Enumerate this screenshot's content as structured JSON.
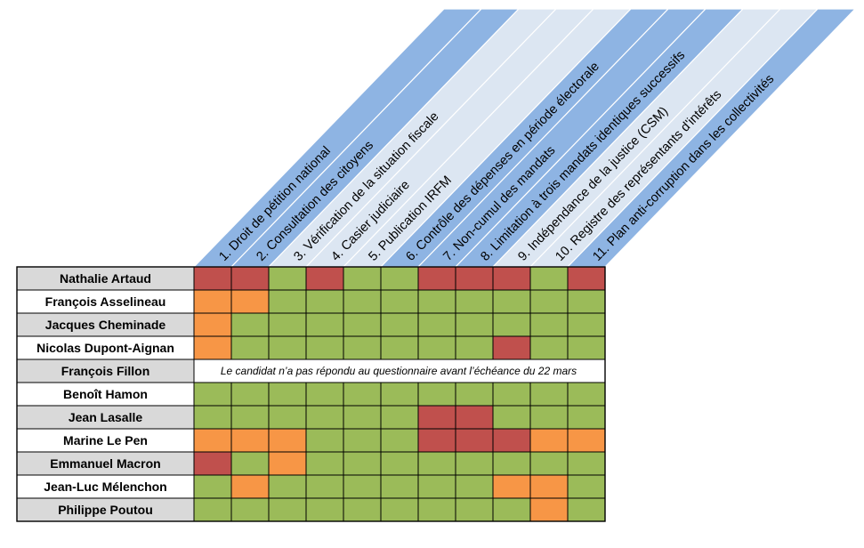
{
  "chart_data": {
    "type": "table",
    "title": "",
    "criteria": [
      "1. Droit de pétition national",
      "2. Consultation des citoyens",
      "3. Vérification de la situation fiscale",
      "4. Casier judiciaire",
      "5. Publication IRFM",
      "6. Contrôle des dépenses en période électorale",
      "7. Non-cumul des mandats",
      "8. Limitation à trois mandats identiques successifs",
      "9. Indépendance de la justice (CSM)",
      "10. Registre des représentants d'intérêts",
      "11. Plan anti-corruption dans les collectivités"
    ],
    "header_colors": [
      "#8eb4e3",
      "#8eb4e3",
      "#dce6f2",
      "#dce6f2",
      "#dce6f2",
      "#8eb4e3",
      "#8eb4e3",
      "#8eb4e3",
      "#dce6f2",
      "#dce6f2",
      "#8eb4e3"
    ],
    "status_colors": {
      "G": "#9bbb59",
      "R": "#c0504d",
      "O": "#f79646"
    },
    "label_colors": [
      "#d9d9d9",
      "#ffffff",
      "#d9d9d9",
      "#ffffff",
      "#d9d9d9",
      "#ffffff",
      "#d9d9d9",
      "#ffffff",
      "#d9d9d9",
      "#ffffff",
      "#d9d9d9"
    ],
    "candidates": [
      {
        "name": "Nathalie Artaud",
        "cells": [
          "R",
          "R",
          "G",
          "R",
          "G",
          "G",
          "R",
          "R",
          "R",
          "G",
          "R"
        ]
      },
      {
        "name": "François Asselineau",
        "cells": [
          "O",
          "O",
          "G",
          "G",
          "G",
          "G",
          "G",
          "G",
          "G",
          "G",
          "G"
        ]
      },
      {
        "name": "Jacques Cheminade",
        "cells": [
          "O",
          "G",
          "G",
          "G",
          "G",
          "G",
          "G",
          "G",
          "G",
          "G",
          "G"
        ]
      },
      {
        "name": "Nicolas Dupont-Aignan",
        "cells": [
          "O",
          "G",
          "G",
          "G",
          "G",
          "G",
          "G",
          "G",
          "R",
          "G",
          "G"
        ]
      },
      {
        "name": "François Fillon",
        "cells": null,
        "note": "Le candidat n’a pas répondu au questionnaire avant l’échéance du 22 mars"
      },
      {
        "name": "Benoît Hamon",
        "cells": [
          "G",
          "G",
          "G",
          "G",
          "G",
          "G",
          "G",
          "G",
          "G",
          "G",
          "G"
        ]
      },
      {
        "name": "Jean Lasalle",
        "cells": [
          "G",
          "G",
          "G",
          "G",
          "G",
          "G",
          "R",
          "R",
          "G",
          "G",
          "G"
        ]
      },
      {
        "name": "Marine Le Pen",
        "cells": [
          "O",
          "O",
          "O",
          "G",
          "G",
          "G",
          "R",
          "R",
          "R",
          "O",
          "O"
        ]
      },
      {
        "name": "Emmanuel Macron",
        "cells": [
          "R",
          "G",
          "O",
          "G",
          "G",
          "G",
          "G",
          "G",
          "G",
          "G",
          "G"
        ]
      },
      {
        "name": "Jean-Luc Mélenchon",
        "cells": [
          "G",
          "O",
          "G",
          "G",
          "G",
          "G",
          "G",
          "G",
          "O",
          "O",
          "G"
        ]
      },
      {
        "name": "Philippe Poutou",
        "cells": [
          "G",
          "G",
          "G",
          "G",
          "G",
          "G",
          "G",
          "G",
          "G",
          "O",
          "G"
        ]
      }
    ]
  }
}
